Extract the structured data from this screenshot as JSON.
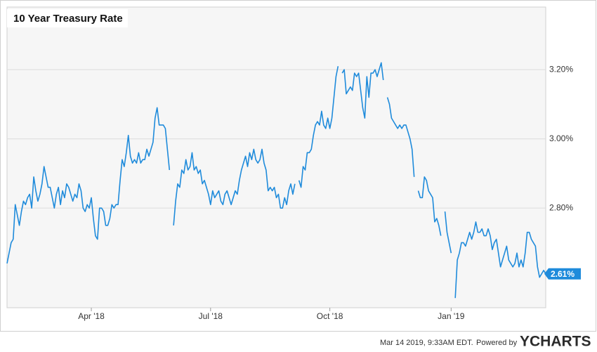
{
  "chart_data": {
    "type": "line",
    "title": "10 Year Treasury Rate",
    "series": [
      {
        "name": "10 Year Treasury Rate",
        "color": "#1f8bdb",
        "values": [
          2.64,
          2.67,
          2.7,
          2.71,
          2.81,
          2.78,
          2.75,
          2.79,
          2.82,
          2.81,
          2.83,
          2.84,
          2.8,
          2.89,
          2.85,
          2.82,
          2.84,
          2.87,
          2.92,
          2.89,
          2.86,
          2.86,
          2.83,
          2.8,
          2.84,
          2.86,
          2.81,
          2.85,
          2.83,
          2.87,
          2.86,
          2.84,
          2.82,
          2.84,
          2.83,
          2.87,
          2.85,
          2.8,
          2.79,
          2.81,
          2.8,
          2.83,
          2.77,
          2.72,
          2.71,
          2.8,
          2.8,
          2.79,
          2.75,
          2.75,
          2.77,
          2.81,
          2.8,
          2.81,
          2.81,
          2.88,
          2.94,
          2.92,
          2.96,
          3.01,
          2.95,
          2.93,
          2.94,
          2.93,
          2.96,
          2.93,
          2.94,
          2.94,
          2.97,
          2.95,
          2.97,
          2.99,
          3.06,
          3.09,
          3.04,
          3.04,
          3.04,
          3.03,
          2.97,
          2.91,
          null,
          2.75,
          2.82,
          2.87,
          2.86,
          2.91,
          2.9,
          2.94,
          2.91,
          2.92,
          2.96,
          2.91,
          2.92,
          2.9,
          2.91,
          2.87,
          2.88,
          2.86,
          2.84,
          2.81,
          2.85,
          2.83,
          2.84,
          2.85,
          2.82,
          2.81,
          2.84,
          2.85,
          2.83,
          2.81,
          2.83,
          2.85,
          2.84,
          2.88,
          2.91,
          2.93,
          2.95,
          2.92,
          2.96,
          2.94,
          2.97,
          2.94,
          2.93,
          2.94,
          2.97,
          2.93,
          2.91,
          2.85,
          2.86,
          2.85,
          2.86,
          2.83,
          2.84,
          2.8,
          2.8,
          2.83,
          2.81,
          2.85,
          2.87,
          2.84,
          2.87,
          null,
          2.88,
          2.86,
          2.92,
          2.91,
          2.96,
          2.96,
          2.97,
          3.01,
          3.04,
          3.05,
          3.04,
          3.08,
          3.04,
          3.03,
          3.06,
          3.03,
          3.06,
          3.12,
          3.18,
          3.21,
          null,
          3.19,
          3.2,
          3.13,
          3.14,
          3.15,
          3.14,
          3.19,
          3.18,
          3.19,
          3.14,
          3.09,
          3.06,
          3.18,
          3.12,
          3.19,
          3.19,
          3.2,
          3.18,
          3.2,
          3.22,
          3.17,
          null,
          3.12,
          3.1,
          3.06,
          3.05,
          3.04,
          3.03,
          3.04,
          3.03,
          3.04,
          3.04,
          3.02,
          3.0,
          2.97,
          2.89,
          null,
          2.85,
          2.83,
          2.83,
          2.89,
          2.88,
          2.85,
          2.84,
          2.83,
          2.76,
          2.77,
          2.75,
          2.72,
          null,
          2.79,
          2.73,
          2.7,
          2.67,
          null,
          2.54,
          2.65,
          2.67,
          2.7,
          2.7,
          2.69,
          2.71,
          2.73,
          2.71,
          2.73,
          2.76,
          2.73,
          2.73,
          2.74,
          2.72,
          2.72,
          2.74,
          2.72,
          2.68,
          2.7,
          2.71,
          2.67,
          2.63,
          2.65,
          2.67,
          2.69,
          2.65,
          2.64,
          2.63,
          2.64,
          2.67,
          2.63,
          2.65,
          2.63,
          2.67,
          2.73,
          2.73,
          2.71,
          2.7,
          2.69,
          2.63,
          2.6,
          2.61,
          2.62,
          2.61
        ]
      }
    ],
    "current_value": {
      "value": 2.61,
      "label": "2.61%"
    },
    "xlim": [
      0,
      262
    ],
    "xticks": [
      {
        "value": 41,
        "label": "Apr '18"
      },
      {
        "value": 99,
        "label": "Jul '18"
      },
      {
        "value": 157,
        "label": "Oct '18"
      },
      {
        "value": 216,
        "label": "Jan '19"
      }
    ],
    "ylim": [
      2.512,
      3.381
    ],
    "yticks": [
      {
        "value": 2.8,
        "label": "2.80%"
      },
      {
        "value": 3.0,
        "label": "3.00%"
      },
      {
        "value": 3.2,
        "label": "3.20%"
      }
    ],
    "grid": true
  },
  "footer": {
    "timestamp": "Mar 14 2019, 9:33AM EDT.",
    "powered": "Powered by",
    "logo": "YCHARTS"
  }
}
